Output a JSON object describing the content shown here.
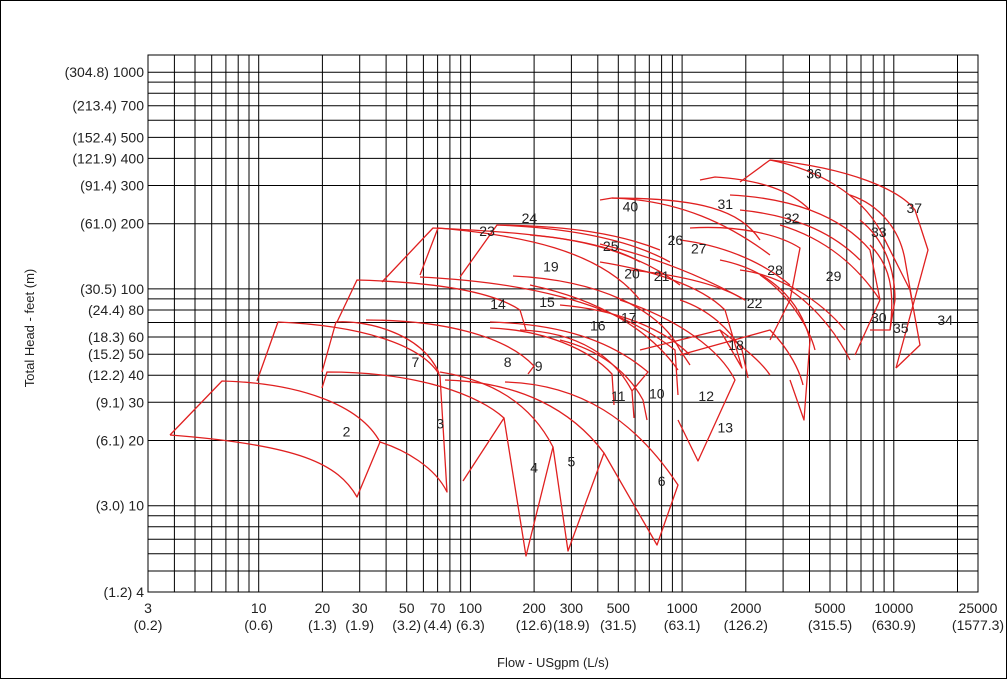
{
  "chart_data": {
    "type": "line",
    "title": "",
    "xlabel": "Flow - USgpm (L/s)",
    "ylabel": "Total Head - feet (m)",
    "x_scale": "log",
    "y_scale": "log",
    "xlim": [
      3,
      25000
    ],
    "ylim": [
      4,
      1200
    ],
    "grid": true,
    "curve_color": "#e02020",
    "grid_color": "#000000",
    "y_ticks": [
      {
        "v": 1000,
        "label": "(304.8) 1000"
      },
      {
        "v": 700,
        "label": "(213.4) 700"
      },
      {
        "v": 500,
        "label": "(152.4) 500"
      },
      {
        "v": 400,
        "label": "(121.9) 400"
      },
      {
        "v": 300,
        "label": "(91.4) 300"
      },
      {
        "v": 200,
        "label": "(61.0) 200"
      },
      {
        "v": 100,
        "label": "(30.5) 100"
      },
      {
        "v": 80,
        "label": "(24.4) 80"
      },
      {
        "v": 60,
        "label": "(18.3) 60"
      },
      {
        "v": 50,
        "label": "(15.2) 50"
      },
      {
        "v": 40,
        "label": "(12.2) 40"
      },
      {
        "v": 30,
        "label": "(9.1) 30"
      },
      {
        "v": 20,
        "label": "(6.1) 20"
      },
      {
        "v": 10,
        "label": "(3.0) 10"
      },
      {
        "v": 4,
        "label": "(1.2) 4"
      }
    ],
    "x_ticks": [
      {
        "v": 3,
        "top": "3",
        "bottom": "(0.2)"
      },
      {
        "v": 10,
        "top": "10",
        "bottom": "(0.6)"
      },
      {
        "v": 20,
        "top": "20",
        "bottom": "(1.3)"
      },
      {
        "v": 30,
        "top": "30",
        "bottom": "(1.9)"
      },
      {
        "v": 50,
        "top": "50",
        "bottom": "(3.2)"
      },
      {
        "v": 70,
        "top": "70",
        "bottom": "(4.4)"
      },
      {
        "v": 100,
        "top": "100",
        "bottom": "(6.3)"
      },
      {
        "v": 200,
        "top": "200",
        "bottom": "(12.6)"
      },
      {
        "v": 300,
        "top": "300",
        "bottom": "(18.9)"
      },
      {
        "v": 500,
        "top": "500",
        "bottom": "(31.5)"
      },
      {
        "v": 1000,
        "top": "1000",
        "bottom": "(63.1)"
      },
      {
        "v": 2000,
        "top": "2000",
        "bottom": "(126.2)"
      },
      {
        "v": 5000,
        "top": "5000",
        "bottom": "(315.5)"
      },
      {
        "v": 10000,
        "top": "10000",
        "bottom": "(630.9)"
      },
      {
        "v": 25000,
        "top": "25000",
        "bottom": "(1577.3)"
      }
    ],
    "x_grid": [
      3,
      4,
      5,
      6,
      7,
      8,
      9,
      10,
      20,
      30,
      40,
      50,
      60,
      70,
      80,
      90,
      100,
      200,
      300,
      400,
      500,
      600,
      700,
      800,
      900,
      1000,
      2000,
      3000,
      4000,
      5000,
      6000,
      7000,
      8000,
      9000,
      10000,
      20000
    ],
    "y_grid": [
      5,
      6,
      7,
      8,
      9,
      10,
      20,
      30,
      40,
      50,
      60,
      70,
      80,
      90,
      100,
      200,
      300,
      400,
      500,
      600,
      700,
      800,
      900,
      1000
    ],
    "curve_labels": [
      {
        "text": "2",
        "x": 26,
        "y": 22
      },
      {
        "text": "3",
        "x": 72,
        "y": 24
      },
      {
        "text": "4",
        "x": 200,
        "y": 15
      },
      {
        "text": "5",
        "x": 300,
        "y": 16
      },
      {
        "text": "6",
        "x": 800,
        "y": 13
      },
      {
        "text": "7",
        "x": 55,
        "y": 46
      },
      {
        "text": "8",
        "x": 150,
        "y": 46
      },
      {
        "text": "9",
        "x": 210,
        "y": 44
      },
      {
        "text": "10",
        "x": 760,
        "y": 33
      },
      {
        "text": "11",
        "x": 500,
        "y": 32
      },
      {
        "text": "12",
        "x": 1300,
        "y": 32
      },
      {
        "text": "13",
        "x": 1600,
        "y": 23
      },
      {
        "text": "14",
        "x": 135,
        "y": 85
      },
      {
        "text": "15",
        "x": 230,
        "y": 87
      },
      {
        "text": "16",
        "x": 400,
        "y": 68
      },
      {
        "text": "17",
        "x": 560,
        "y": 74
      },
      {
        "text": "18",
        "x": 1800,
        "y": 55
      },
      {
        "text": "19",
        "x": 240,
        "y": 127
      },
      {
        "text": "20",
        "x": 580,
        "y": 118
      },
      {
        "text": "21",
        "x": 800,
        "y": 115
      },
      {
        "text": "22",
        "x": 2200,
        "y": 86
      },
      {
        "text": "23",
        "x": 120,
        "y": 185
      },
      {
        "text": "24",
        "x": 190,
        "y": 212
      },
      {
        "text": "25",
        "x": 460,
        "y": 158
      },
      {
        "text": "26",
        "x": 930,
        "y": 168
      },
      {
        "text": "27",
        "x": 1200,
        "y": 154
      },
      {
        "text": "28",
        "x": 2750,
        "y": 122
      },
      {
        "text": "29",
        "x": 5200,
        "y": 115
      },
      {
        "text": "30",
        "x": 8500,
        "y": 74
      },
      {
        "text": "31",
        "x": 1600,
        "y": 246
      },
      {
        "text": "32",
        "x": 3300,
        "y": 213
      },
      {
        "text": "33",
        "x": 8500,
        "y": 183
      },
      {
        "text": "34",
        "x": 17500,
        "y": 72
      },
      {
        "text": "35",
        "x": 10800,
        "y": 66
      },
      {
        "text": "36",
        "x": 4200,
        "y": 340
      },
      {
        "text": "37",
        "x": 12500,
        "y": 236
      },
      {
        "text": "40",
        "x": 570,
        "y": 240
      }
    ]
  }
}
